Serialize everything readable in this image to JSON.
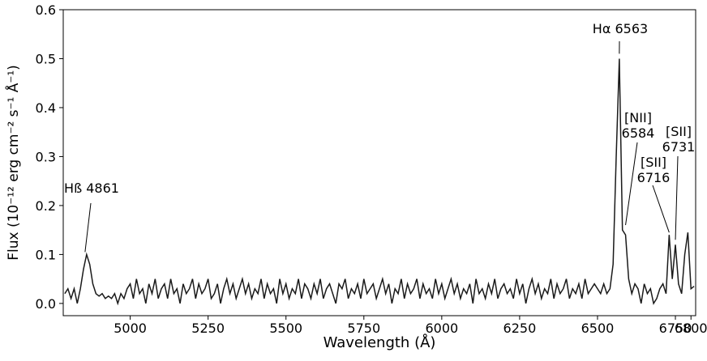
{
  "chart_data": {
    "type": "line",
    "xlabel": "Wavelength (Å)",
    "ylabel": "Flux (10⁻¹² erg cm⁻² s⁻¹ Å⁻¹)",
    "xlim": [
      4785,
      6815
    ],
    "ylim": [
      -0.025,
      0.6
    ],
    "xticks": [
      5000,
      5250,
      5500,
      5750,
      6000,
      6250,
      6500,
      6750,
      6800
    ],
    "yticks": [
      {
        "value": 0,
        "label": "0.0"
      },
      0.1,
      0.2,
      0.3,
      0.4,
      0.5,
      0.6
    ],
    "grid": false,
    "series": [
      {
        "color": "#1a1a1a",
        "x": [
          4790,
          4800,
          4810,
          4820,
          4830,
          4840,
          4850,
          4860,
          4870,
          4880,
          4890,
          4900,
          4910,
          4920,
          4930,
          4940,
          4950,
          4960,
          4970,
          4980,
          4990,
          5000,
          5010,
          5020,
          5030,
          5040,
          5050,
          5060,
          5070,
          5080,
          5090,
          5100,
          5110,
          5120,
          5130,
          5140,
          5150,
          5160,
          5170,
          5180,
          5190,
          5200,
          5210,
          5220,
          5230,
          5240,
          5250,
          5260,
          5270,
          5280,
          5290,
          5300,
          5310,
          5320,
          5330,
          5340,
          5350,
          5360,
          5370,
          5380,
          5390,
          5400,
          5410,
          5420,
          5430,
          5440,
          5450,
          5460,
          5470,
          5480,
          5490,
          5500,
          5510,
          5520,
          5530,
          5540,
          5550,
          5560,
          5570,
          5580,
          5590,
          5600,
          5610,
          5620,
          5630,
          5640,
          5650,
          5660,
          5670,
          5680,
          5690,
          5700,
          5710,
          5720,
          5730,
          5740,
          5750,
          5760,
          5770,
          5780,
          5790,
          5800,
          5810,
          5820,
          5830,
          5840,
          5850,
          5860,
          5870,
          5880,
          5890,
          5900,
          5910,
          5920,
          5930,
          5940,
          5950,
          5960,
          5970,
          5980,
          5990,
          6000,
          6010,
          6020,
          6030,
          6040,
          6050,
          6060,
          6070,
          6080,
          6090,
          6100,
          6110,
          6120,
          6130,
          6140,
          6150,
          6160,
          6170,
          6180,
          6190,
          6200,
          6210,
          6220,
          6230,
          6240,
          6250,
          6260,
          6270,
          6280,
          6290,
          6300,
          6310,
          6320,
          6330,
          6340,
          6350,
          6360,
          6370,
          6380,
          6390,
          6400,
          6410,
          6420,
          6430,
          6440,
          6450,
          6460,
          6470,
          6480,
          6490,
          6500,
          6510,
          6520,
          6530,
          6540,
          6550,
          6560,
          6570,
          6580,
          6590,
          6600,
          6610,
          6620,
          6630,
          6640,
          6650,
          6660,
          6670,
          6680,
          6690,
          6700,
          6710,
          6720,
          6730,
          6740,
          6750,
          6760,
          6770,
          6780,
          6790,
          6800,
          6810
        ],
        "values": [
          0.02,
          0.03,
          0.01,
          0.03,
          0.0,
          0.03,
          0.07,
          0.1,
          0.08,
          0.04,
          0.02,
          0.015,
          0.02,
          0.01,
          0.015,
          0.01,
          0.02,
          0.0,
          0.02,
          0.01,
          0.03,
          0.04,
          0.01,
          0.05,
          0.02,
          0.03,
          0.0,
          0.04,
          0.02,
          0.05,
          0.01,
          0.03,
          0.04,
          0.01,
          0.05,
          0.02,
          0.03,
          0.0,
          0.04,
          0.02,
          0.03,
          0.05,
          0.01,
          0.04,
          0.02,
          0.03,
          0.05,
          0.01,
          0.02,
          0.04,
          0.0,
          0.03,
          0.05,
          0.02,
          0.04,
          0.01,
          0.03,
          0.05,
          0.02,
          0.04,
          0.01,
          0.03,
          0.02,
          0.05,
          0.01,
          0.04,
          0.02,
          0.03,
          0.0,
          0.05,
          0.02,
          0.04,
          0.01,
          0.03,
          0.02,
          0.05,
          0.01,
          0.04,
          0.03,
          0.01,
          0.04,
          0.02,
          0.05,
          0.01,
          0.03,
          0.04,
          0.02,
          0.0,
          0.04,
          0.03,
          0.05,
          0.01,
          0.03,
          0.02,
          0.04,
          0.01,
          0.05,
          0.02,
          0.03,
          0.04,
          0.01,
          0.03,
          0.05,
          0.02,
          0.04,
          0.0,
          0.03,
          0.02,
          0.05,
          0.01,
          0.04,
          0.02,
          0.03,
          0.05,
          0.01,
          0.04,
          0.02,
          0.03,
          0.01,
          0.05,
          0.02,
          0.04,
          0.01,
          0.03,
          0.05,
          0.02,
          0.04,
          0.01,
          0.03,
          0.02,
          0.04,
          0.0,
          0.05,
          0.02,
          0.03,
          0.01,
          0.04,
          0.02,
          0.05,
          0.01,
          0.03,
          0.04,
          0.02,
          0.03,
          0.01,
          0.05,
          0.02,
          0.04,
          0.0,
          0.03,
          0.05,
          0.02,
          0.04,
          0.01,
          0.03,
          0.02,
          0.05,
          0.01,
          0.04,
          0.02,
          0.03,
          0.05,
          0.01,
          0.03,
          0.02,
          0.04,
          0.01,
          0.05,
          0.02,
          0.03,
          0.04,
          0.03,
          0.02,
          0.04,
          0.02,
          0.03,
          0.08,
          0.3,
          0.5,
          0.15,
          0.14,
          0.05,
          0.02,
          0.04,
          0.03,
          0.0,
          0.04,
          0.02,
          0.03,
          0.0,
          0.01,
          0.03,
          0.04,
          0.02,
          0.14,
          0.05,
          0.12,
          0.04,
          0.02,
          0.1,
          0.145,
          0.03,
          0.035
        ]
      }
    ],
    "annotations": [
      {
        "lines": [
          "Hß 4861"
        ],
        "x": 4855,
        "y": 0.105
      },
      {
        "lines": [
          "Hα 6563"
        ],
        "x": 6570,
        "y": 0.51
      },
      {
        "lines": [
          "[NII]",
          "6584"
        ],
        "x": 6590,
        "y": 0.16
      },
      {
        "lines": [
          "[SII]",
          "6716"
        ],
        "x": 6730,
        "y": 0.145
      },
      {
        "lines": [
          "[SII]",
          "6731"
        ],
        "x": 6750,
        "y": 0.13
      }
    ]
  }
}
